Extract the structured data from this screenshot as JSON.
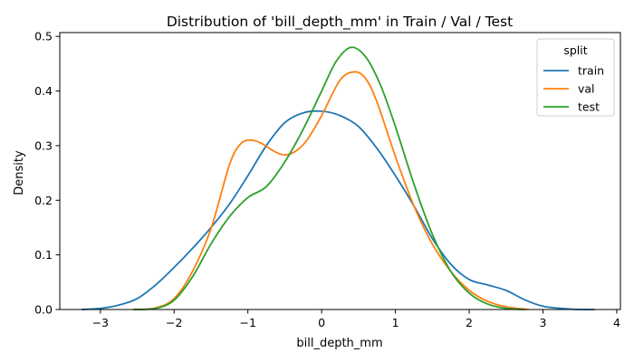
{
  "chart_data": {
    "type": "line",
    "title": "Distribution of 'bill_depth_mm' in Train / Val / Test",
    "xlabel": "bill_depth_mm",
    "ylabel": "Density",
    "xlim": [
      -3.55,
      4.05
    ],
    "ylim": [
      0,
      0.507
    ],
    "xticks": [
      -3,
      -2,
      -1,
      0,
      1,
      2,
      3,
      4
    ],
    "xtick_labels": [
      "−3",
      "−2",
      "−1",
      "0",
      "1",
      "2",
      "3",
      "4"
    ],
    "yticks": [
      0,
      0.1,
      0.2,
      0.3,
      0.4,
      0.5
    ],
    "ytick_labels": [
      "0.0",
      "0.1",
      "0.2",
      "0.3",
      "0.4",
      "0.5"
    ],
    "grid": false,
    "legend": {
      "title": "split",
      "position": "top-right"
    },
    "series": [
      {
        "name": "train",
        "color": "#1f77b4",
        "x": [
          -3.25,
          -3.0,
          -2.75,
          -2.5,
          -2.25,
          -2.0,
          -1.75,
          -1.5,
          -1.25,
          -1.0,
          -0.75,
          -0.5,
          -0.25,
          0.0,
          0.25,
          0.5,
          0.75,
          1.0,
          1.25,
          1.5,
          1.75,
          2.0,
          2.25,
          2.5,
          2.75,
          3.0,
          3.25,
          3.5,
          3.7
        ],
        "y": [
          0.0,
          0.002,
          0.008,
          0.02,
          0.045,
          0.077,
          0.112,
          0.15,
          0.193,
          0.245,
          0.3,
          0.342,
          0.36,
          0.363,
          0.355,
          0.335,
          0.295,
          0.245,
          0.19,
          0.13,
          0.083,
          0.055,
          0.045,
          0.035,
          0.018,
          0.006,
          0.002,
          0.0,
          0.0
        ]
      },
      {
        "name": "val",
        "color": "#ff7f0e",
        "x": [
          -2.55,
          -2.25,
          -2.0,
          -1.75,
          -1.5,
          -1.25,
          -1.1,
          -0.95,
          -0.8,
          -0.65,
          -0.5,
          -0.35,
          -0.2,
          0.0,
          0.25,
          0.45,
          0.6,
          0.75,
          1.0,
          1.25,
          1.5,
          1.75,
          2.0,
          2.25,
          2.5,
          2.8
        ],
        "y": [
          0.0,
          0.003,
          0.02,
          0.07,
          0.148,
          0.265,
          0.303,
          0.31,
          0.303,
          0.29,
          0.283,
          0.29,
          0.31,
          0.355,
          0.42,
          0.435,
          0.422,
          0.38,
          0.28,
          0.19,
          0.12,
          0.07,
          0.035,
          0.015,
          0.005,
          0.0
        ]
      },
      {
        "name": "test",
        "color": "#2ca02c",
        "x": [
          -2.55,
          -2.25,
          -2.0,
          -1.75,
          -1.5,
          -1.25,
          -1.0,
          -0.75,
          -0.5,
          -0.25,
          0.0,
          0.2,
          0.4,
          0.6,
          0.8,
          1.0,
          1.25,
          1.5,
          1.75,
          2.0,
          2.25,
          2.5,
          2.75
        ],
        "y": [
          0.0,
          0.002,
          0.017,
          0.06,
          0.12,
          0.17,
          0.205,
          0.225,
          0.27,
          0.33,
          0.4,
          0.455,
          0.48,
          0.462,
          0.41,
          0.335,
          0.23,
          0.138,
          0.07,
          0.03,
          0.01,
          0.002,
          0.0
        ]
      }
    ]
  }
}
